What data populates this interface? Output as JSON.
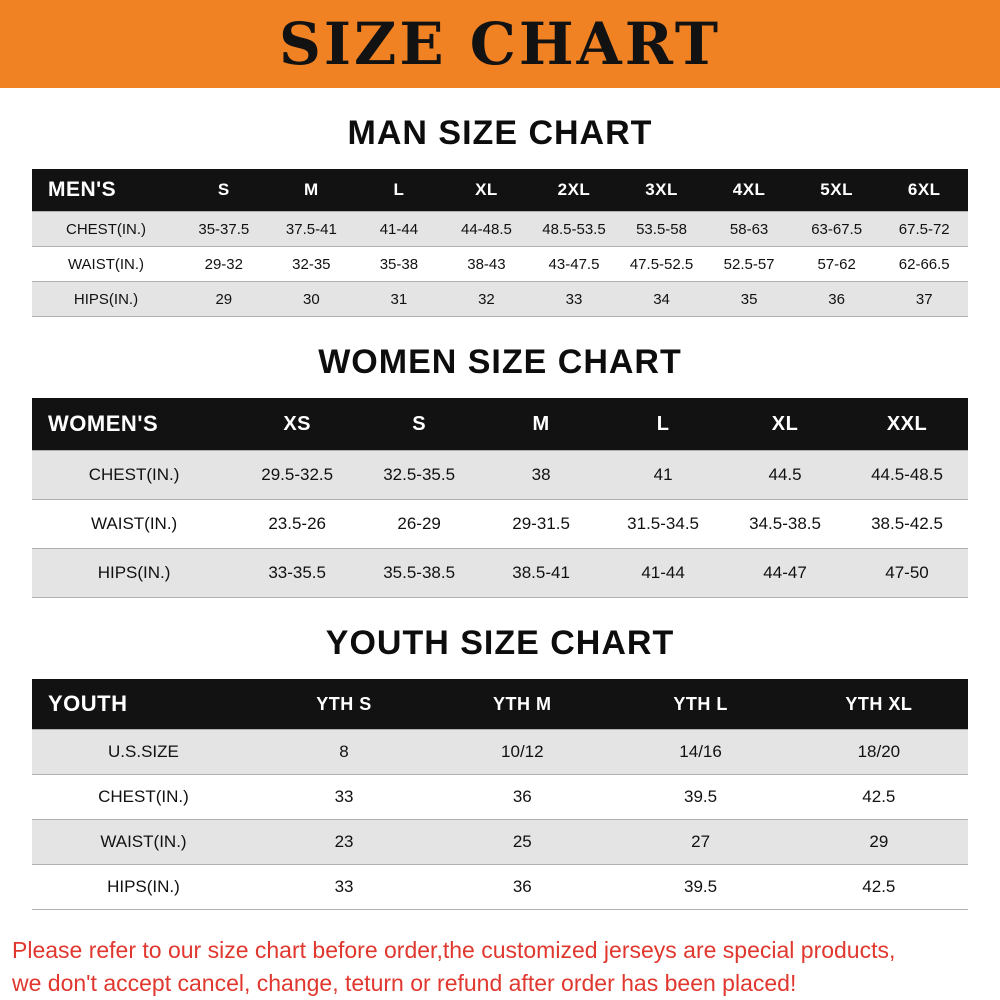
{
  "banner": {
    "title": "SIZE CHART",
    "bg_color": "#f08224",
    "text_color": "#121212"
  },
  "colors": {
    "table_header_bg": "#121212",
    "table_shade_row": "#e4e4e4",
    "footer_text": "#e0372e"
  },
  "sections": [
    {
      "heading": "MAN SIZE CHART",
      "table": {
        "name": "men-size-table",
        "header_label": "MEN'S",
        "columns": [
          "S",
          "M",
          "L",
          "XL",
          "2XL",
          "3XL",
          "4XL",
          "5XL",
          "6XL"
        ],
        "rows": [
          {
            "label": "CHEST(IN.)",
            "values": [
              "35-37.5",
              "37.5-41",
              "41-44",
              "44-48.5",
              "48.5-53.5",
              "53.5-58",
              "58-63",
              "63-67.5",
              "67.5-72"
            ]
          },
          {
            "label": "WAIST(IN.)",
            "values": [
              "29-32",
              "32-35",
              "35-38",
              "38-43",
              "43-47.5",
              "47.5-52.5",
              "52.5-57",
              "57-62",
              "62-66.5"
            ]
          },
          {
            "label": "HIPS(IN.)",
            "values": [
              "29",
              "30",
              "31",
              "32",
              "33",
              "34",
              "35",
              "36",
              "37"
            ]
          }
        ]
      }
    },
    {
      "heading": "WOMEN SIZE CHART",
      "table": {
        "name": "women-size-table",
        "header_label": "WOMEN'S",
        "columns": [
          "XS",
          "S",
          "M",
          "L",
          "XL",
          "XXL"
        ],
        "rows": [
          {
            "label": "CHEST(IN.)",
            "values": [
              "29.5-32.5",
              "32.5-35.5",
              "38",
              "41",
              "44.5",
              "44.5-48.5"
            ]
          },
          {
            "label": "WAIST(IN.)",
            "values": [
              "23.5-26",
              "26-29",
              "29-31.5",
              "31.5-34.5",
              "34.5-38.5",
              "38.5-42.5"
            ]
          },
          {
            "label": "HIPS(IN.)",
            "values": [
              "33-35.5",
              "35.5-38.5",
              "38.5-41",
              "41-44",
              "44-47",
              "47-50"
            ]
          }
        ]
      }
    },
    {
      "heading": "YOUTH SIZE CHART",
      "table": {
        "name": "youth-size-table",
        "header_label": "YOUTH",
        "columns": [
          "YTH S",
          "YTH M",
          "YTH L",
          "YTH XL"
        ],
        "rows": [
          {
            "label": "U.S.SIZE",
            "values": [
              "8",
              "10/12",
              "14/16",
              "18/20"
            ]
          },
          {
            "label": "CHEST(IN.)",
            "values": [
              "33",
              "36",
              "39.5",
              "42.5"
            ]
          },
          {
            "label": "WAIST(IN.)",
            "values": [
              "23",
              "25",
              "27",
              "29"
            ]
          },
          {
            "label": "HIPS(IN.)",
            "values": [
              "33",
              "36",
              "39.5",
              "42.5"
            ]
          }
        ]
      }
    }
  ],
  "footer": {
    "line1": "Please refer to our size chart before order,the customized jerseys are special products,",
    "line2": "we don't accept cancel, change, teturn or refund after order has been placed!"
  }
}
